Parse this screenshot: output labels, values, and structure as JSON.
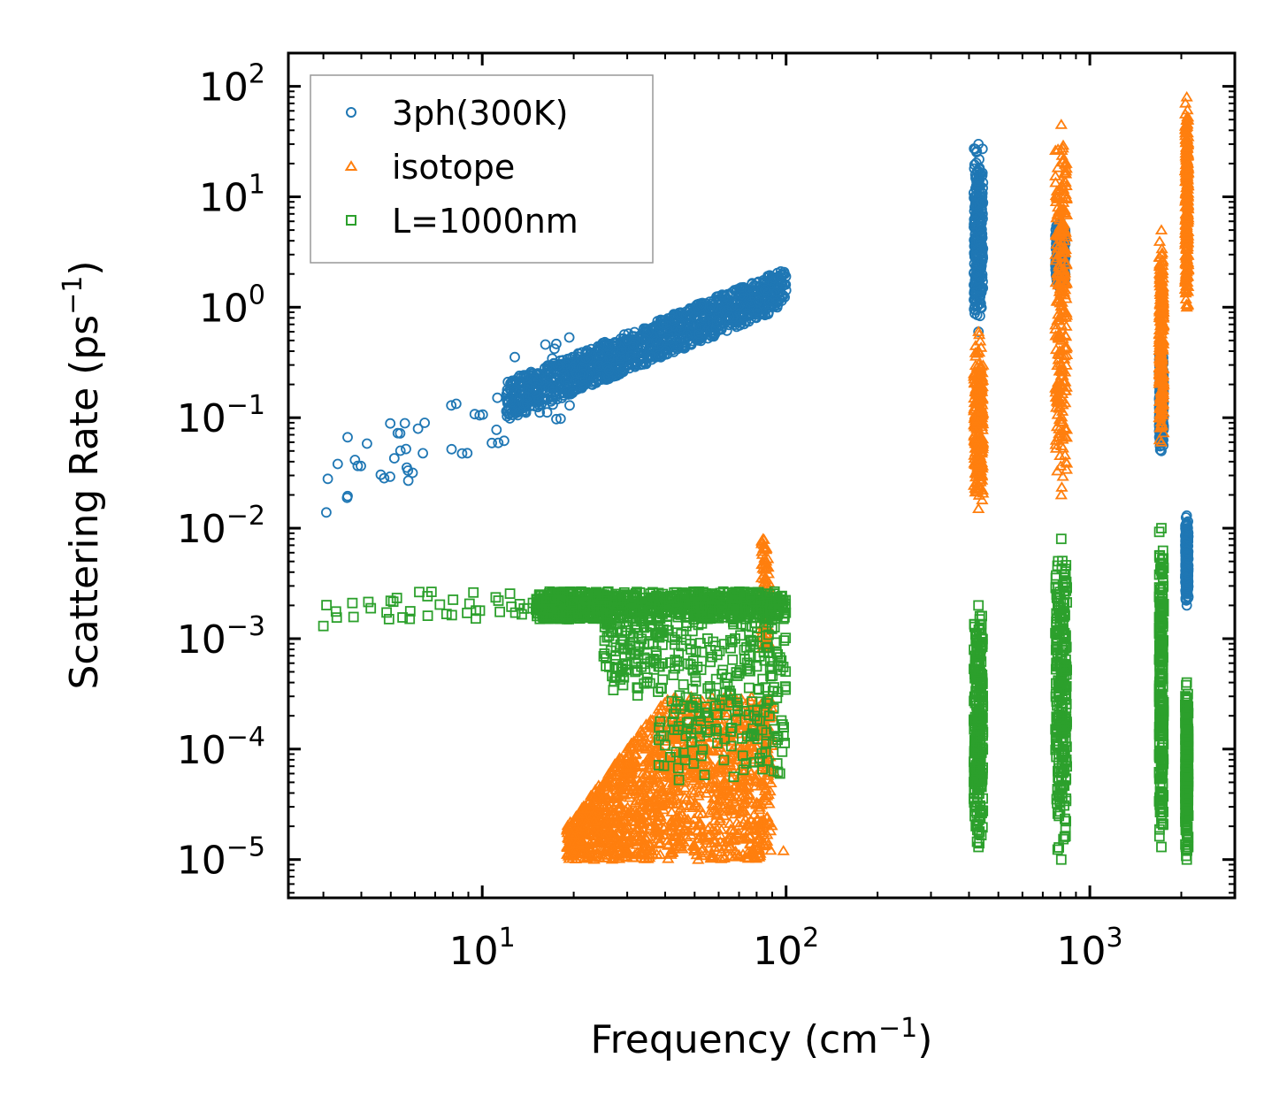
{
  "chart_data": {
    "type": "scatter",
    "title": "",
    "xlabel": "Frequency (cm",
    "xlabel_sup": "−1",
    "xlabel_end": ")",
    "ylabel": "Scattering Rate (ps",
    "ylabel_sup": "−1",
    "ylabel_end": ")",
    "xscale": "log",
    "yscale": "log",
    "xlim": [
      2.3,
      3000
    ],
    "ylim": [
      4.5e-06,
      200
    ],
    "xticks": [
      {
        "value": 10,
        "base": "10",
        "exp": "1"
      },
      {
        "value": 100,
        "base": "10",
        "exp": "2"
      },
      {
        "value": 1000,
        "base": "10",
        "exp": "3"
      }
    ],
    "yticks": [
      {
        "value": 1e-05,
        "base": "10",
        "exp": "−5"
      },
      {
        "value": 0.0001,
        "base": "10",
        "exp": "−4"
      },
      {
        "value": 0.001,
        "base": "10",
        "exp": "−3"
      },
      {
        "value": 0.01,
        "base": "10",
        "exp": "−2"
      },
      {
        "value": 0.1,
        "base": "10",
        "exp": "−1"
      },
      {
        "value": 1,
        "base": "10",
        "exp": "0"
      },
      {
        "value": 10,
        "base": "10",
        "exp": "1"
      },
      {
        "value": 100,
        "base": "10",
        "exp": "2"
      }
    ],
    "legend_position": "top-left",
    "series": [
      {
        "name": "3ph(300K)",
        "marker": "circle",
        "color": "#1f77b4",
        "low_freq": {
          "x_range": [
            3,
            100
          ],
          "y_at_x_min": 0.03,
          "y_at_x_max": 1.5,
          "spread_decades": 0.35
        },
        "clusters": [
          {
            "x_range": [
              415,
              445
            ],
            "y_range": [
              0.6,
              30
            ]
          },
          {
            "x_range": [
              770,
              830
            ],
            "y_range": [
              1.5,
              6
            ]
          },
          {
            "x_range": [
              1690,
              1750
            ],
            "y_range": [
              0.05,
              0.4
            ]
          },
          {
            "x_range": [
              2060,
              2110
            ],
            "y_range": [
              0.002,
              0.013
            ]
          }
        ]
      },
      {
        "name": "isotope",
        "marker": "triangle",
        "color": "#ff7f0e",
        "low_freq": {
          "x_range": [
            19,
            100
          ],
          "y_range": [
            1e-05,
            0.0003
          ]
        },
        "extra_points": [
          [
            84,
            0.008
          ],
          [
            85,
            0.005
          ],
          [
            86,
            0.003
          ],
          [
            87,
            0.002
          ],
          [
            98,
            1.2e-05
          ],
          [
            90,
            0.00012
          ],
          [
            92,
            6e-05
          ]
        ],
        "clusters": [
          {
            "x_range": [
              415,
              445
            ],
            "y_range": [
              0.015,
              0.6
            ]
          },
          {
            "x_range": [
              770,
              840
            ],
            "y_range": [
              0.02,
              45
            ]
          },
          {
            "x_range": [
              1690,
              1750
            ],
            "y_range": [
              0.06,
              5
            ]
          },
          {
            "x_range": [
              2060,
              2110
            ],
            "y_range": [
              1.0,
              80
            ]
          }
        ]
      },
      {
        "name": "L=1000nm",
        "marker": "square",
        "color": "#2ca02c",
        "low_freq": {
          "x_range": [
            3,
            100
          ],
          "y_at_x_min": 0.0013,
          "y_flat": 0.002,
          "spread_decades": 0.25
        },
        "clusters": [
          {
            "x_range": [
              415,
              445
            ],
            "y_range": [
              1.3e-05,
              0.002
            ]
          },
          {
            "x_range": [
              770,
              840
            ],
            "y_range": [
              1e-05,
              0.008
            ]
          },
          {
            "x_range": [
              1690,
              1750
            ],
            "y_range": [
              1.3e-05,
              0.01
            ]
          },
          {
            "x_range": [
              2060,
              2110
            ],
            "y_range": [
              1e-05,
              0.0004
            ]
          }
        ]
      }
    ]
  }
}
